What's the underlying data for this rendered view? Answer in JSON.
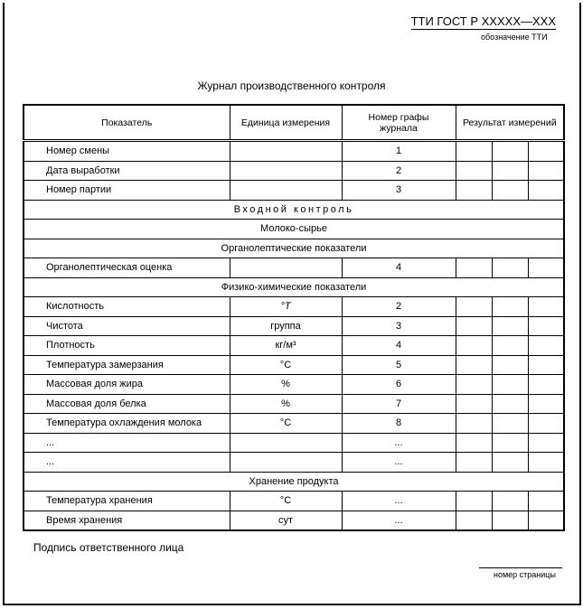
{
  "header": {
    "code": "ТТИ ГОСТ Р XXXXX—XXX",
    "code_caption": "обозначение ТТИ"
  },
  "title": "Журнал производственного контроля",
  "table": {
    "columns": [
      "Показатель",
      "Единица измерения",
      "Номер графы журнала",
      "Результат измерений"
    ],
    "rows": [
      {
        "type": "data",
        "indicator": "Номер смены",
        "unit": "",
        "column": "1"
      },
      {
        "type": "data",
        "indicator": "Дата выработки",
        "unit": "",
        "column": "2"
      },
      {
        "type": "data",
        "indicator": "Номер партии",
        "unit": "",
        "column": "3"
      },
      {
        "type": "section",
        "label": "Входной контроль",
        "spaced": true
      },
      {
        "type": "section",
        "label": "Молоко-сырье"
      },
      {
        "type": "section",
        "label": "Органолептические показатели"
      },
      {
        "type": "data",
        "indicator": "Органолептическая оценка",
        "unit": "",
        "column": "4"
      },
      {
        "type": "section",
        "label": "Физико-химические показатели"
      },
      {
        "type": "data",
        "indicator": "Кислотность",
        "unit": "°T",
        "column": "2"
      },
      {
        "type": "data",
        "indicator": "Чистота",
        "unit": "группа",
        "column": "3"
      },
      {
        "type": "data",
        "indicator": "Плотность",
        "unit": "кг/м³",
        "column": "4"
      },
      {
        "type": "data",
        "indicator": "Температура замерзания",
        "unit": "°C",
        "column": "5"
      },
      {
        "type": "data",
        "indicator": "Массовая доля жира",
        "unit": "%",
        "column": "6"
      },
      {
        "type": "data",
        "indicator": "Массовая доля белка",
        "unit": "%",
        "column": "7"
      },
      {
        "type": "data",
        "indicator": "Температура охлаждения молока",
        "unit": "°C",
        "column": "8"
      },
      {
        "type": "data",
        "indicator": "...",
        "unit": "",
        "column": "..."
      },
      {
        "type": "data",
        "indicator": "...",
        "unit": "",
        "column": "..."
      },
      {
        "type": "section",
        "label": "Хранение продукта"
      },
      {
        "type": "data",
        "indicator": "Температура хранения",
        "unit": "°C",
        "column": "..."
      },
      {
        "type": "data",
        "indicator": "Время хранения",
        "unit": "сут",
        "column": "..."
      }
    ]
  },
  "footer": {
    "signature_label": "Подпись ответственного лица",
    "page_number_caption": "номер страницы"
  }
}
